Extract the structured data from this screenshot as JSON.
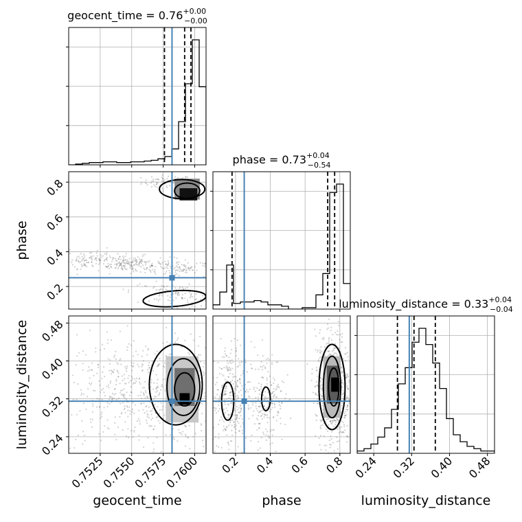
{
  "chart_data": {
    "type": "corner",
    "parameters": [
      {
        "name": "geocent_time",
        "axis_label": "geocent_time",
        "title": "geocent_time = 0.76",
        "title_upper": "+0.00",
        "title_lower": "−0.00",
        "range": [
          0.75,
          0.7609
        ],
        "ticks": [
          0.7525,
          0.755,
          0.7575,
          0.76
        ],
        "tick_labels": [
          "0.7525",
          "0.7550",
          "0.7575",
          "0.7600"
        ],
        "truth": 0.7582,
        "quantiles": [
          0.7576,
          0.7592,
          0.7597
        ],
        "hist_edges_start": 0.75,
        "hist_bin_width": 0.000545,
        "hist_counts": [
          0,
          1,
          2,
          3,
          3,
          4,
          4,
          3,
          3,
          4,
          4,
          5,
          6,
          8,
          11,
          21,
          57,
          107,
          165,
          103
        ]
      },
      {
        "name": "phase",
        "axis_label": "phase",
        "title": "phase = 0.73",
        "title_upper": "+0.04",
        "title_lower": "−0.54",
        "range": [
          0.07,
          0.86
        ],
        "ticks": [
          0.2,
          0.4,
          0.6,
          0.8
        ],
        "tick_labels": [
          "0.2",
          "0.4",
          "0.6",
          "0.8"
        ],
        "truth": 0.25,
        "quantiles": [
          0.18,
          0.73,
          0.77
        ],
        "hist_edges_start": 0.07,
        "hist_bin_width": 0.0395,
        "hist_counts": [
          3,
          12,
          31,
          4,
          5,
          5,
          6,
          5,
          3,
          3,
          2,
          0,
          0,
          1,
          1,
          10,
          25,
          82,
          88,
          18
        ]
      },
      {
        "name": "luminosity_distance",
        "axis_label": "luminosity_distance",
        "title": "luminosity_distance = 0.33",
        "title_upper": "+0.04",
        "title_lower": "−0.04",
        "range": [
          0.205,
          0.495
        ],
        "ticks": [
          0.24,
          0.32,
          0.4,
          0.48
        ],
        "tick_labels": [
          "0.24",
          "0.32",
          "0.40",
          "0.48"
        ],
        "truth": 0.315,
        "quantiles": [
          0.29,
          0.325,
          0.37
        ],
        "hist_edges_start": 0.205,
        "hist_bin_width": 0.0145,
        "hist_counts": [
          1,
          2,
          4,
          7,
          11,
          19,
          30,
          37,
          48,
          54,
          47,
          39,
          28,
          15,
          8,
          5,
          3,
          2,
          1,
          1
        ]
      }
    ],
    "pairs": [
      {
        "x": "geocent_time",
        "y": "phase",
        "truth": [
          0.7582,
          0.25
        ],
        "point_clusters": [
          {
            "center": [
              0.7578,
              0.8
            ],
            "spread": [
              0.001,
              0.02
            ],
            "n": 70,
            "rotation": 0
          },
          {
            "center": [
              0.7548,
              0.33
            ],
            "spread": [
              0.004,
              0.025
            ],
            "n": 420,
            "rotation": 0.42
          },
          {
            "center": [
              0.7585,
              0.15
            ],
            "spread": [
              0.0018,
              0.03
            ],
            "n": 120,
            "rotation": 0.2
          }
        ],
        "density_cores": [
          {
            "center": [
              0.7595,
              0.73
            ],
            "size": [
              0.0007,
              0.035
            ],
            "shade": "#111111"
          },
          {
            "center": [
              0.7594,
              0.76
            ],
            "size": [
              0.001,
              0.06
            ],
            "shade": "#8a8a8a"
          }
        ],
        "contours": [
          {
            "center": [
              0.759,
              0.76
            ],
            "radii": [
              0.0018,
              0.055
            ],
            "rotation": 0
          },
          {
            "center": [
              0.7594,
              0.75
            ],
            "radii": [
              0.001,
              0.045
            ],
            "rotation": 0
          },
          {
            "center": [
              0.7584,
              0.13
            ],
            "radii": [
              0.0025,
              0.045
            ],
            "rotation": 0.15
          }
        ]
      },
      {
        "x": "geocent_time",
        "y": "luminosity_distance",
        "truth": [
          0.7582,
          0.315
        ],
        "point_clusters": [
          {
            "center": [
              0.7555,
              0.33
            ],
            "spread": [
              0.0035,
              0.06
            ],
            "n": 600,
            "rotation": 0
          },
          {
            "center": [
              0.759,
              0.34
            ],
            "spread": [
              0.0008,
              0.04
            ],
            "n": 250,
            "rotation": 0
          }
        ],
        "density_cores": [
          {
            "center": [
              0.7592,
              0.32
            ],
            "size": [
              0.0004,
              0.012
            ],
            "shade": "#000000"
          },
          {
            "center": [
              0.7592,
              0.345
            ],
            "size": [
              0.0008,
              0.04
            ],
            "shade": "#6f6f6f"
          },
          {
            "center": [
              0.759,
              0.34
            ],
            "size": [
              0.0013,
              0.07
            ],
            "shade": "#c8c8c8"
          }
        ],
        "contours": [
          {
            "center": [
              0.7585,
              0.35
            ],
            "radii": [
              0.0021,
              0.085
            ],
            "rotation": 0
          },
          {
            "center": [
              0.7591,
              0.345
            ],
            "radii": [
              0.0013,
              0.06
            ],
            "rotation": 0
          },
          {
            "center": [
              0.7592,
              0.34
            ],
            "radii": [
              0.0008,
              0.035
            ],
            "rotation": 0
          }
        ]
      },
      {
        "x": "phase",
        "y": "luminosity_distance",
        "truth": [
          0.25,
          0.315
        ],
        "point_clusters": [
          {
            "center": [
              0.17,
              0.32
            ],
            "spread": [
              0.06,
              0.06
            ],
            "n": 350,
            "rotation": 0
          },
          {
            "center": [
              0.38,
              0.32
            ],
            "spread": [
              0.05,
              0.05
            ],
            "n": 200,
            "rotation": 0
          },
          {
            "center": [
              0.76,
              0.34
            ],
            "spread": [
              0.05,
              0.06
            ],
            "n": 700,
            "rotation": 0
          }
        ],
        "density_cores": [
          {
            "center": [
              0.77,
              0.35
            ],
            "size": [
              0.02,
              0.015
            ],
            "shade": "#000000"
          },
          {
            "center": [
              0.76,
              0.35
            ],
            "size": [
              0.035,
              0.04
            ],
            "shade": "#5a5a5a"
          },
          {
            "center": [
              0.755,
              0.345
            ],
            "size": [
              0.05,
              0.065
            ],
            "shade": "#b9b9b9"
          }
        ],
        "contours": [
          {
            "center": [
              0.755,
              0.345
            ],
            "radii": [
              0.075,
              0.09
            ],
            "rotation": 0
          },
          {
            "center": [
              0.755,
              0.345
            ],
            "radii": [
              0.05,
              0.065
            ],
            "rotation": 0
          },
          {
            "center": [
              0.765,
              0.345
            ],
            "radii": [
              0.03,
              0.04
            ],
            "rotation": 0
          },
          {
            "center": [
              0.155,
              0.315
            ],
            "radii": [
              0.035,
              0.04
            ],
            "rotation": 0
          },
          {
            "center": [
              0.375,
              0.32
            ],
            "radii": [
              0.025,
              0.025
            ],
            "rotation": 0
          }
        ]
      }
    ],
    "colors": {
      "truth": "#4682b4",
      "hist": "#000000",
      "points": "#555555",
      "grid": "#b0b0b0"
    },
    "grid": true
  }
}
